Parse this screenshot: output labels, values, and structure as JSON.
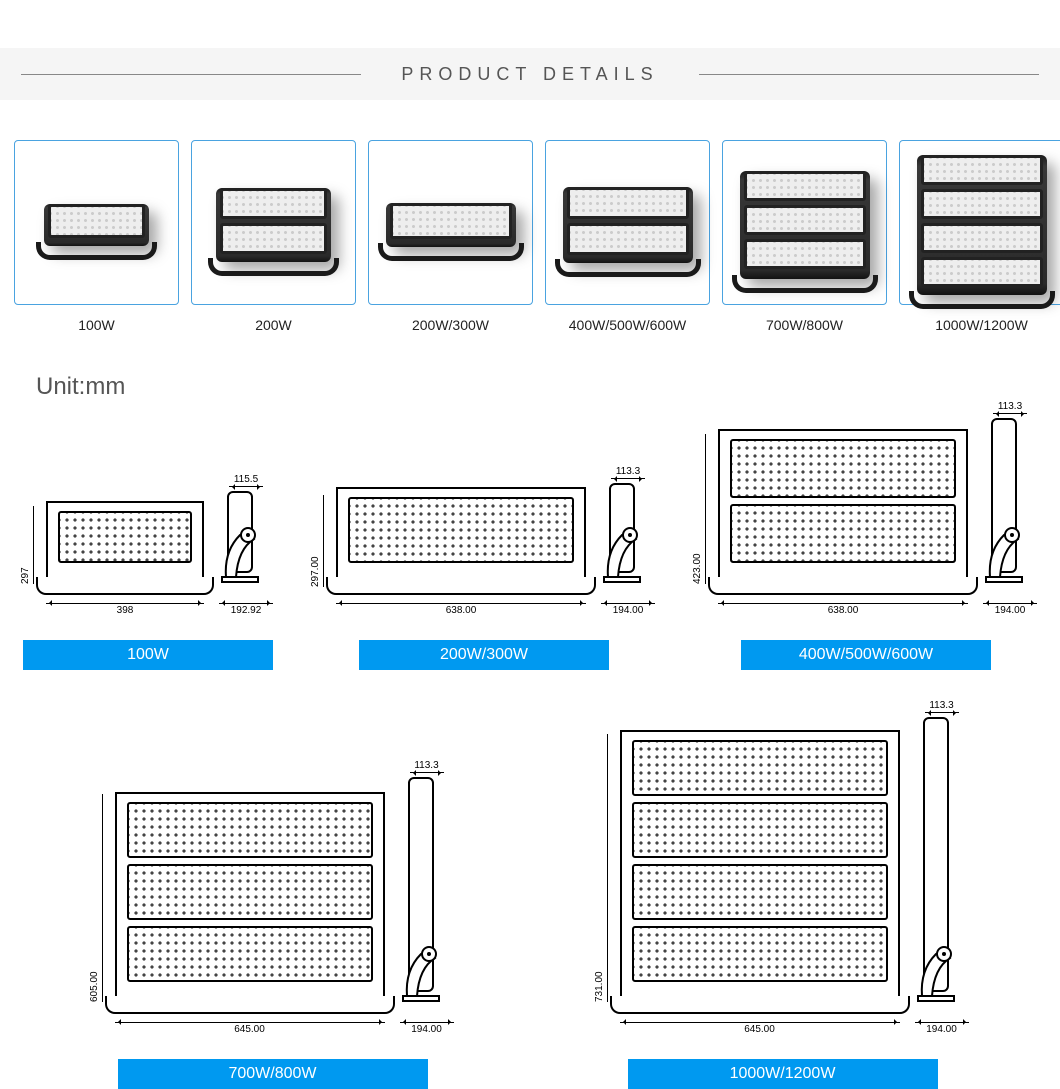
{
  "header": {
    "title": "PRODUCT DETAILS"
  },
  "unit_label": "Unit:mm",
  "thumb_border_color": "#4aa3e0",
  "blue_tag_color": "#0099f0",
  "thumbs": [
    {
      "label": "100W",
      "panels": 1,
      "body_w": 105,
      "body_h": 42
    },
    {
      "label": "200W",
      "panels": 2,
      "body_w": 115,
      "body_h": 74
    },
    {
      "label": "200W/300W",
      "panels": 1,
      "body_w": 130,
      "body_h": 44
    },
    {
      "label": "400W/500W/600W",
      "panels": 2,
      "body_w": 130,
      "body_h": 76
    },
    {
      "label": "700W/800W",
      "panels": 3,
      "body_w": 130,
      "body_h": 108
    },
    {
      "label": "1000W/1200W",
      "panels": 4,
      "body_w": 130,
      "body_h": 140
    }
  ],
  "tech_row1": [
    {
      "tag": "100W",
      "front_w": 158,
      "front_h": 78,
      "panels": 1,
      "dim_w": "398",
      "dim_h": "297",
      "side_top": "115.5",
      "side_h": 92,
      "side_bottom": "192.92"
    },
    {
      "tag": "200W/300W",
      "front_w": 250,
      "front_h": 92,
      "panels": 1,
      "dim_w": "638.00",
      "dim_h": "297.00",
      "side_top": "113.3",
      "side_h": 100,
      "side_bottom": "194.00"
    },
    {
      "tag": "400W/500W/600W",
      "front_w": 250,
      "front_h": 150,
      "panels": 2,
      "dim_w": "638.00",
      "dim_h": "423.00",
      "side_top": "113.3",
      "side_h": 165,
      "side_bottom": "194.00"
    }
  ],
  "tech_row2": [
    {
      "tag": "700W/800W",
      "front_w": 270,
      "front_h": 208,
      "panels": 3,
      "dim_w": "645.00",
      "dim_h": "605.00",
      "side_top": "113.3",
      "side_h": 225,
      "side_bottom": "194.00"
    },
    {
      "tag": "1000W/1200W",
      "front_w": 280,
      "front_h": 268,
      "panels": 4,
      "dim_w": "645.00",
      "dim_h": "731.00",
      "side_top": "113.3",
      "side_h": 285,
      "side_bottom": "194.00"
    }
  ]
}
